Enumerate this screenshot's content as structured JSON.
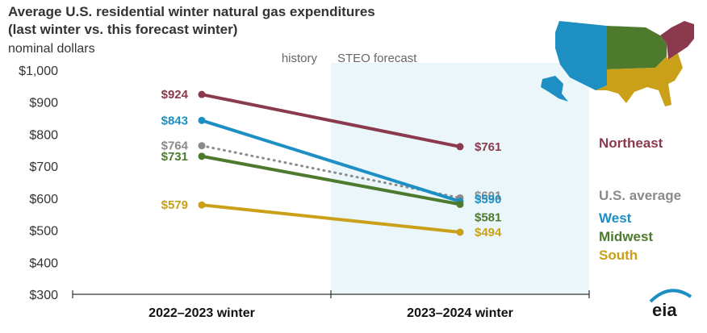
{
  "chart_data": {
    "type": "line",
    "title": "Average U.S. residential winter natural gas expenditures",
    "subtitle": "(last winter vs. this forecast winter)",
    "ylabel": "nominal dollars",
    "categories": [
      "2022–2023 winter",
      "2023–2024 winter"
    ],
    "ylim": [
      300,
      1000
    ],
    "yticks": [
      300,
      400,
      500,
      600,
      700,
      800,
      900,
      1000
    ],
    "ytick_labels": [
      "$300",
      "$400",
      "$500",
      "$600",
      "$700",
      "$800",
      "$900",
      "$1,000"
    ],
    "zones": {
      "history": "history",
      "forecast": "STEO forecast"
    },
    "series": [
      {
        "name": "Northeast",
        "values": [
          924,
          761
        ],
        "labels": [
          "$924",
          "$761"
        ],
        "color": "#8b3a4e",
        "style": "solid"
      },
      {
        "name": "U.S. average",
        "values": [
          764,
          601
        ],
        "labels": [
          "$764",
          "$601"
        ],
        "color": "#8a8a8a",
        "style": "dotted"
      },
      {
        "name": "West",
        "values": [
          843,
          590
        ],
        "labels": [
          "$843",
          "$590"
        ],
        "color": "#1d8fc3",
        "style": "solid"
      },
      {
        "name": "Midwest",
        "values": [
          731,
          581
        ],
        "labels": [
          "$731",
          "$581"
        ],
        "color": "#4e7a2e",
        "style": "solid"
      },
      {
        "name": "South",
        "values": [
          579,
          494
        ],
        "labels": [
          "$579",
          "$494"
        ],
        "color": "#c9a018",
        "style": "solid"
      }
    ],
    "legend": [
      "Northeast",
      "U.S. average",
      "West",
      "Midwest",
      "South"
    ]
  },
  "logo": {
    "text": "eia"
  },
  "colors": {
    "forecast_shade": "#eaf6fa",
    "text": "#333333"
  }
}
